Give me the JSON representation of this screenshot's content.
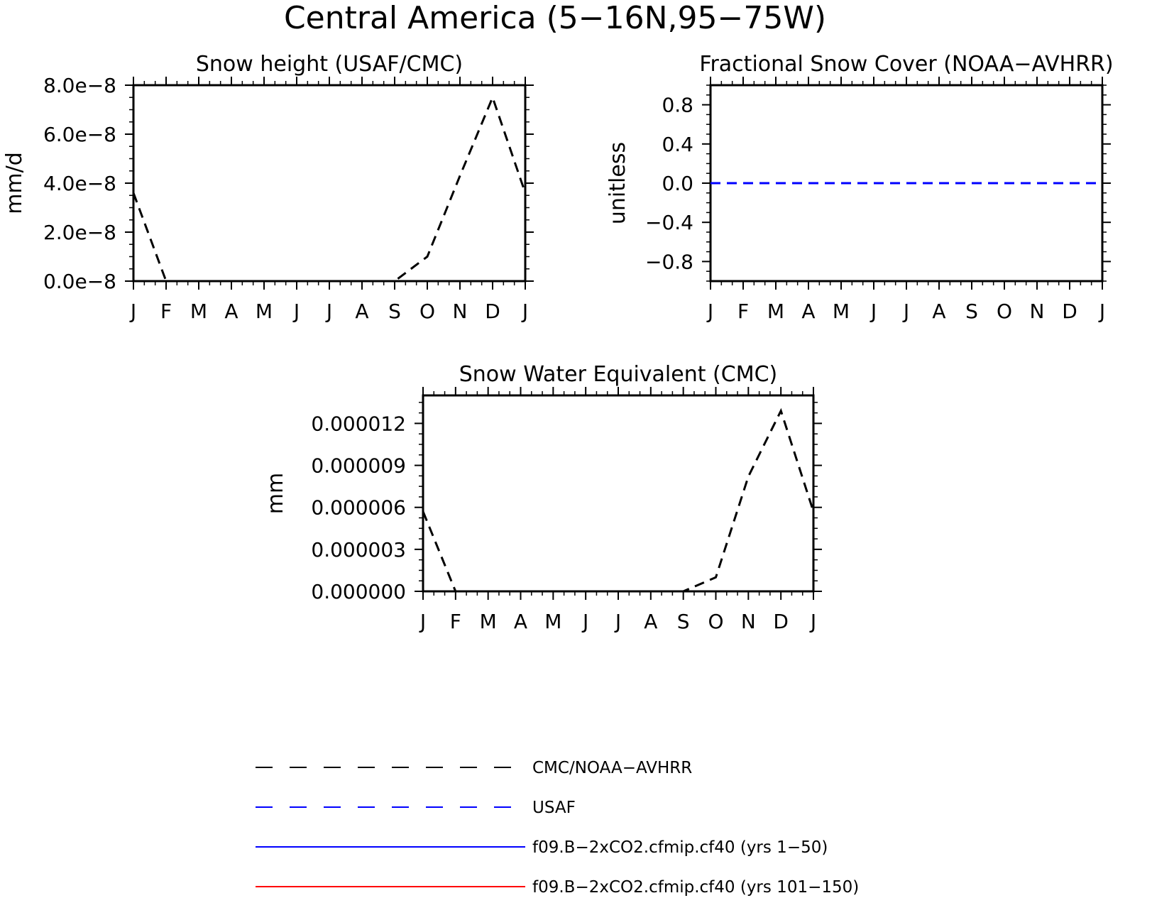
{
  "figure": {
    "title": "Central America (5−16N,95−75W)"
  },
  "colors": {
    "axis": "#000000",
    "cmc": "#000000",
    "usaf": "#0000ff",
    "model1": "#0000ff",
    "model2": "#ff0000"
  },
  "legend": [
    {
      "label": "CMC/NOAA−AVHRR",
      "style": "dashed",
      "color": "#000000"
    },
    {
      "label": "USAF",
      "style": "dashed",
      "color": "#0000ff"
    },
    {
      "label": "f09.B−2xCO2.cfmip.cf40 (yrs 1−50)",
      "style": "solid",
      "color": "#0000ff"
    },
    {
      "label": "f09.B−2xCO2.cfmip.cf40 (yrs 101−150)",
      "style": "solid",
      "color": "#ff0000"
    }
  ],
  "chart_data": [
    {
      "id": "snow-height",
      "type": "line",
      "title": "Snow height (USAF/CMC)",
      "ylabel": "mm/d",
      "ylim": [
        0,
        8e-08
      ],
      "yticks": [
        0,
        2e-08,
        4e-08,
        6e-08,
        8e-08
      ],
      "ytick_labels": [
        "0.0e−8",
        "2.0e−8",
        "4.0e−8",
        "6.0e−8",
        "8.0e−8"
      ],
      "categories": [
        "J",
        "F",
        "M",
        "A",
        "M",
        "J",
        "J",
        "A",
        "S",
        "O",
        "N",
        "D",
        "J"
      ],
      "series": [
        {
          "name": "CMC/NOAA−AVHRR",
          "style": "dashed",
          "color": "#000000",
          "values": [
            3.6e-08,
            0,
            0,
            0,
            0,
            0,
            0,
            0,
            0,
            1e-08,
            4.3e-08,
            7.5e-08,
            3.6e-08
          ]
        }
      ]
    },
    {
      "id": "fractional-snow-cover",
      "type": "line",
      "title": "Fractional Snow Cover (NOAA−AVHRR)",
      "ylabel": "unitless",
      "ylim": [
        -1,
        1
      ],
      "yticks": [
        -0.8,
        -0.4,
        0,
        0.4,
        0.8
      ],
      "ytick_labels": [
        "−0.8",
        "−0.4",
        "0.0",
        "0.4",
        "0.8"
      ],
      "categories": [
        "J",
        "F",
        "M",
        "A",
        "M",
        "J",
        "J",
        "A",
        "S",
        "O",
        "N",
        "D",
        "J"
      ],
      "series": [
        {
          "name": "CMC/NOAA−AVHRR",
          "style": "dashed",
          "color": "#000000",
          "values": [
            0,
            0,
            0,
            0,
            0,
            0,
            0,
            0,
            0,
            0,
            0,
            0,
            0
          ]
        },
        {
          "name": "USAF",
          "style": "dashed",
          "color": "#0000ff",
          "values": [
            0,
            0,
            0,
            0,
            0,
            0,
            0,
            0,
            0,
            0,
            0,
            0,
            0
          ]
        }
      ]
    },
    {
      "id": "snow-water-equivalent",
      "type": "line",
      "title": "Snow Water Equivalent (CMC)",
      "ylabel": "mm",
      "ylim": [
        0,
        1.4e-05
      ],
      "yticks": [
        0,
        3e-06,
        6e-06,
        9e-06,
        1.2e-05
      ],
      "ytick_labels": [
        "0.000000",
        "0.000003",
        "0.000006",
        "0.000009",
        "0.000012"
      ],
      "categories": [
        "J",
        "F",
        "M",
        "A",
        "M",
        "J",
        "J",
        "A",
        "S",
        "O",
        "N",
        "D",
        "J"
      ],
      "series": [
        {
          "name": "CMC/NOAA−AVHRR",
          "style": "dashed",
          "color": "#000000",
          "values": [
            5.7e-06,
            0,
            0,
            0,
            0,
            0,
            0,
            0,
            0,
            1e-06,
            8.2e-06,
            1.29e-05,
            5.7e-06
          ]
        }
      ]
    }
  ]
}
